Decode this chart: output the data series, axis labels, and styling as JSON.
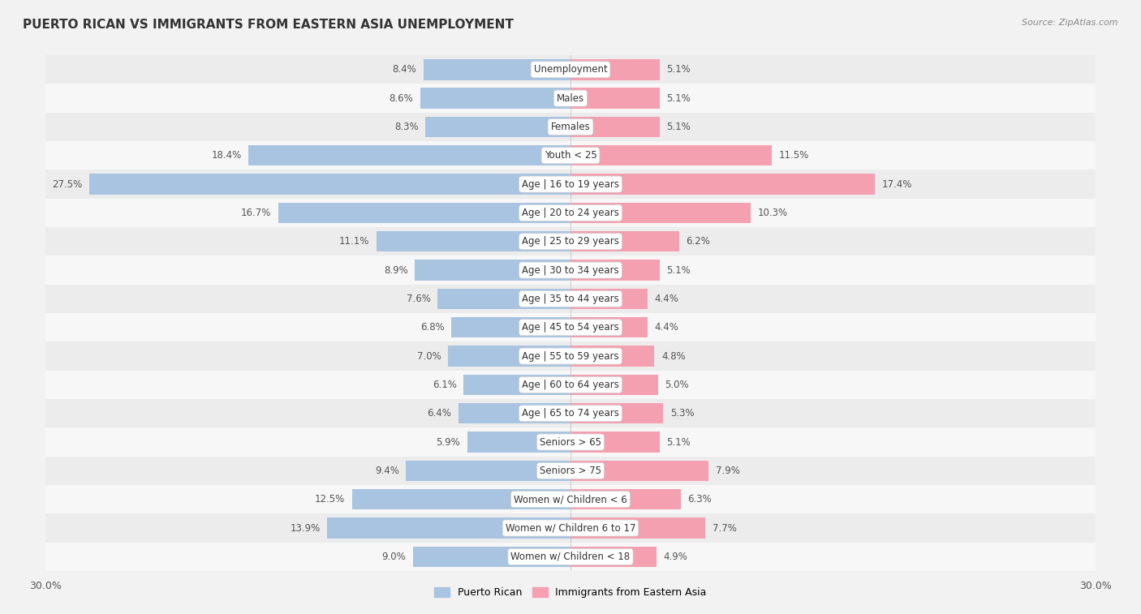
{
  "title": "PUERTO RICAN VS IMMIGRANTS FROM EASTERN ASIA UNEMPLOYMENT",
  "source": "Source: ZipAtlas.com",
  "categories": [
    "Unemployment",
    "Males",
    "Females",
    "Youth < 25",
    "Age | 16 to 19 years",
    "Age | 20 to 24 years",
    "Age | 25 to 29 years",
    "Age | 30 to 34 years",
    "Age | 35 to 44 years",
    "Age | 45 to 54 years",
    "Age | 55 to 59 years",
    "Age | 60 to 64 years",
    "Age | 65 to 74 years",
    "Seniors > 65",
    "Seniors > 75",
    "Women w/ Children < 6",
    "Women w/ Children 6 to 17",
    "Women w/ Children < 18"
  ],
  "puerto_rican": [
    8.4,
    8.6,
    8.3,
    18.4,
    27.5,
    16.7,
    11.1,
    8.9,
    7.6,
    6.8,
    7.0,
    6.1,
    6.4,
    5.9,
    9.4,
    12.5,
    13.9,
    9.0
  ],
  "eastern_asia": [
    5.1,
    5.1,
    5.1,
    11.5,
    17.4,
    10.3,
    6.2,
    5.1,
    4.4,
    4.4,
    4.8,
    5.0,
    5.3,
    5.1,
    7.9,
    6.3,
    7.7,
    4.9
  ],
  "puerto_rican_color": "#a8c4e0",
  "eastern_asia_color": "#f4a0b0",
  "bar_height": 0.72,
  "x_max": 30.0,
  "row_colors": [
    "#ececec",
    "#f7f7f7"
  ],
  "label_color": "#555555",
  "title_color": "#333333",
  "title_fontsize": 11,
  "cat_fontsize": 8.5,
  "val_fontsize": 8.5,
  "legend_labels": [
    "Puerto Rican",
    "Immigrants from Eastern Asia"
  ],
  "bg_color": "#f2f2f2"
}
